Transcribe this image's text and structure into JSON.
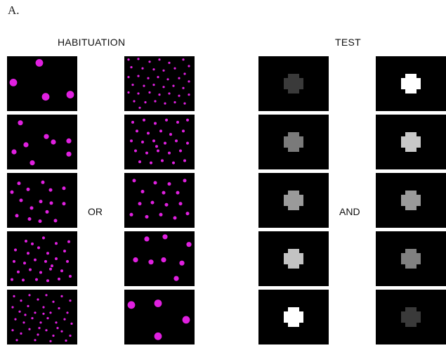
{
  "panel_label": "A.",
  "headings": {
    "habituation": "HABITUATION",
    "test": "TEST"
  },
  "connectors": {
    "or": "OR",
    "and": "AND"
  },
  "colors": {
    "dot": "#e020e0",
    "tile_bg": "#000000"
  },
  "habituation": {
    "left_column": [
      {
        "dots": [
          [
            0.46,
            0.12,
            0.06
          ],
          [
            0.09,
            0.48,
            0.06
          ],
          [
            0.55,
            0.74,
            0.06
          ],
          [
            0.9,
            0.7,
            0.06
          ]
        ]
      },
      {
        "dots": [
          [
            0.19,
            0.15,
            0.04
          ],
          [
            0.56,
            0.4,
            0.04
          ],
          [
            0.27,
            0.55,
            0.04
          ],
          [
            0.66,
            0.5,
            0.04
          ],
          [
            0.88,
            0.48,
            0.04
          ],
          [
            0.1,
            0.68,
            0.04
          ],
          [
            0.88,
            0.72,
            0.04
          ],
          [
            0.36,
            0.88,
            0.04
          ]
        ]
      },
      {
        "dots": [
          [
            0.17,
            0.19,
            0.028
          ],
          [
            0.3,
            0.3,
            0.028
          ],
          [
            0.51,
            0.17,
            0.028
          ],
          [
            0.62,
            0.31,
            0.028
          ],
          [
            0.81,
            0.28,
            0.028
          ],
          [
            0.2,
            0.5,
            0.028
          ],
          [
            0.48,
            0.52,
            0.028
          ],
          [
            0.63,
            0.55,
            0.028
          ],
          [
            0.81,
            0.56,
            0.028
          ],
          [
            0.35,
            0.64,
            0.028
          ],
          [
            0.57,
            0.71,
            0.028
          ],
          [
            0.14,
            0.78,
            0.028
          ],
          [
            0.32,
            0.84,
            0.028
          ],
          [
            0.47,
            0.88,
            0.028
          ],
          [
            0.69,
            0.87,
            0.028
          ],
          [
            0.07,
            0.35,
            0.028
          ]
        ]
      },
      {
        "dots": [
          [
            0.27,
            0.18,
            0.022
          ],
          [
            0.52,
            0.12,
            0.022
          ],
          [
            0.7,
            0.22,
            0.022
          ],
          [
            0.88,
            0.19,
            0.022
          ],
          [
            0.12,
            0.34,
            0.022
          ],
          [
            0.3,
            0.4,
            0.022
          ],
          [
            0.45,
            0.3,
            0.022
          ],
          [
            0.58,
            0.4,
            0.022
          ],
          [
            0.82,
            0.36,
            0.022
          ],
          [
            0.1,
            0.55,
            0.022
          ],
          [
            0.25,
            0.58,
            0.022
          ],
          [
            0.4,
            0.52,
            0.022
          ],
          [
            0.55,
            0.55,
            0.022
          ],
          [
            0.7,
            0.5,
            0.022
          ],
          [
            0.86,
            0.55,
            0.022
          ],
          [
            0.16,
            0.74,
            0.022
          ],
          [
            0.33,
            0.7,
            0.022
          ],
          [
            0.48,
            0.75,
            0.022
          ],
          [
            0.62,
            0.69,
            0.022
          ],
          [
            0.78,
            0.72,
            0.022
          ],
          [
            0.23,
            0.89,
            0.022
          ],
          [
            0.42,
            0.88,
            0.022
          ],
          [
            0.58,
            0.9,
            0.022
          ],
          [
            0.74,
            0.87,
            0.022
          ],
          [
            0.9,
            0.82,
            0.022
          ],
          [
            0.07,
            0.88,
            0.022
          ],
          [
            0.36,
            0.23,
            0.022
          ],
          [
            0.64,
            0.63,
            0.022
          ]
        ]
      },
      {
        "dots": [
          [
            0.1,
            0.12,
            0.018
          ],
          [
            0.2,
            0.2,
            0.018
          ],
          [
            0.32,
            0.1,
            0.018
          ],
          [
            0.44,
            0.18,
            0.018
          ],
          [
            0.56,
            0.1,
            0.018
          ],
          [
            0.66,
            0.22,
            0.018
          ],
          [
            0.78,
            0.12,
            0.018
          ],
          [
            0.9,
            0.2,
            0.018
          ],
          [
            0.08,
            0.32,
            0.018
          ],
          [
            0.18,
            0.4,
            0.018
          ],
          [
            0.3,
            0.3,
            0.018
          ],
          [
            0.4,
            0.42,
            0.018
          ],
          [
            0.52,
            0.32,
            0.018
          ],
          [
            0.62,
            0.42,
            0.018
          ],
          [
            0.74,
            0.34,
            0.018
          ],
          [
            0.86,
            0.42,
            0.018
          ],
          [
            0.12,
            0.54,
            0.018
          ],
          [
            0.24,
            0.6,
            0.018
          ],
          [
            0.36,
            0.52,
            0.018
          ],
          [
            0.48,
            0.6,
            0.018
          ],
          [
            0.58,
            0.52,
            0.018
          ],
          [
            0.7,
            0.6,
            0.018
          ],
          [
            0.82,
            0.54,
            0.018
          ],
          [
            0.92,
            0.62,
            0.018
          ],
          [
            0.08,
            0.74,
            0.018
          ],
          [
            0.2,
            0.8,
            0.018
          ],
          [
            0.32,
            0.72,
            0.018
          ],
          [
            0.44,
            0.82,
            0.018
          ],
          [
            0.56,
            0.74,
            0.018
          ],
          [
            0.66,
            0.84,
            0.018
          ],
          [
            0.78,
            0.76,
            0.018
          ],
          [
            0.9,
            0.84,
            0.018
          ],
          [
            0.14,
            0.92,
            0.018
          ],
          [
            0.4,
            0.92,
            0.018
          ],
          [
            0.62,
            0.94,
            0.018
          ],
          [
            0.84,
            0.93,
            0.018
          ],
          [
            0.26,
            0.46,
            0.018
          ],
          [
            0.46,
            0.7,
            0.018
          ],
          [
            0.72,
            0.7,
            0.018
          ],
          [
            0.52,
            0.44,
            0.018
          ]
        ]
      }
    ],
    "right_column": [
      {
        "dots": [
          [
            0.06,
            0.06,
            0.018
          ],
          [
            0.2,
            0.05,
            0.018
          ],
          [
            0.36,
            0.1,
            0.018
          ],
          [
            0.5,
            0.06,
            0.018
          ],
          [
            0.64,
            0.12,
            0.018
          ],
          [
            0.84,
            0.06,
            0.018
          ],
          [
            0.92,
            0.18,
            0.018
          ],
          [
            0.1,
            0.2,
            0.018
          ],
          [
            0.26,
            0.22,
            0.018
          ],
          [
            0.42,
            0.24,
            0.018
          ],
          [
            0.56,
            0.26,
            0.018
          ],
          [
            0.72,
            0.22,
            0.018
          ],
          [
            0.86,
            0.32,
            0.018
          ],
          [
            0.06,
            0.38,
            0.018
          ],
          [
            0.2,
            0.36,
            0.018
          ],
          [
            0.34,
            0.4,
            0.018
          ],
          [
            0.48,
            0.38,
            0.018
          ],
          [
            0.62,
            0.42,
            0.018
          ],
          [
            0.78,
            0.4,
            0.018
          ],
          [
            0.92,
            0.46,
            0.018
          ],
          [
            0.12,
            0.52,
            0.018
          ],
          [
            0.28,
            0.54,
            0.018
          ],
          [
            0.42,
            0.52,
            0.018
          ],
          [
            0.56,
            0.56,
            0.018
          ],
          [
            0.7,
            0.54,
            0.018
          ],
          [
            0.84,
            0.58,
            0.018
          ],
          [
            0.06,
            0.66,
            0.018
          ],
          [
            0.2,
            0.68,
            0.018
          ],
          [
            0.36,
            0.66,
            0.018
          ],
          [
            0.5,
            0.7,
            0.018
          ],
          [
            0.64,
            0.68,
            0.018
          ],
          [
            0.78,
            0.72,
            0.018
          ],
          [
            0.92,
            0.7,
            0.018
          ],
          [
            0.14,
            0.82,
            0.018
          ],
          [
            0.3,
            0.84,
            0.018
          ],
          [
            0.44,
            0.82,
            0.018
          ],
          [
            0.58,
            0.86,
            0.018
          ],
          [
            0.72,
            0.84,
            0.018
          ],
          [
            0.86,
            0.86,
            0.018
          ],
          [
            0.22,
            0.94,
            0.018
          ]
        ]
      },
      {
        "dots": [
          [
            0.12,
            0.14,
            0.022
          ],
          [
            0.28,
            0.1,
            0.022
          ],
          [
            0.44,
            0.16,
            0.022
          ],
          [
            0.6,
            0.1,
            0.022
          ],
          [
            0.76,
            0.14,
            0.022
          ],
          [
            0.9,
            0.1,
            0.022
          ],
          [
            0.18,
            0.3,
            0.022
          ],
          [
            0.34,
            0.34,
            0.022
          ],
          [
            0.52,
            0.3,
            0.022
          ],
          [
            0.66,
            0.36,
            0.022
          ],
          [
            0.84,
            0.3,
            0.022
          ],
          [
            0.1,
            0.48,
            0.022
          ],
          [
            0.26,
            0.5,
            0.022
          ],
          [
            0.42,
            0.48,
            0.022
          ],
          [
            0.58,
            0.52,
            0.022
          ],
          [
            0.74,
            0.48,
            0.022
          ],
          [
            0.9,
            0.52,
            0.022
          ],
          [
            0.16,
            0.66,
            0.022
          ],
          [
            0.32,
            0.7,
            0.022
          ],
          [
            0.48,
            0.66,
            0.022
          ],
          [
            0.64,
            0.7,
            0.022
          ],
          [
            0.8,
            0.66,
            0.022
          ],
          [
            0.22,
            0.86,
            0.022
          ],
          [
            0.38,
            0.88,
            0.022
          ],
          [
            0.54,
            0.84,
            0.022
          ],
          [
            0.7,
            0.88,
            0.022
          ],
          [
            0.86,
            0.84,
            0.022
          ],
          [
            0.46,
            0.58,
            0.022
          ]
        ]
      },
      {
        "dots": [
          [
            0.14,
            0.14,
            0.028
          ],
          [
            0.44,
            0.18,
            0.028
          ],
          [
            0.64,
            0.2,
            0.028
          ],
          [
            0.86,
            0.14,
            0.028
          ],
          [
            0.26,
            0.34,
            0.028
          ],
          [
            0.56,
            0.36,
            0.028
          ],
          [
            0.76,
            0.36,
            0.028
          ],
          [
            0.22,
            0.56,
            0.028
          ],
          [
            0.4,
            0.54,
            0.028
          ],
          [
            0.6,
            0.58,
            0.028
          ],
          [
            0.8,
            0.56,
            0.028
          ],
          [
            0.1,
            0.76,
            0.028
          ],
          [
            0.32,
            0.8,
            0.028
          ],
          [
            0.52,
            0.76,
            0.028
          ],
          [
            0.72,
            0.82,
            0.028
          ],
          [
            0.9,
            0.74,
            0.028
          ]
        ]
      },
      {
        "dots": [
          [
            0.32,
            0.14,
            0.04
          ],
          [
            0.58,
            0.1,
            0.04
          ],
          [
            0.92,
            0.24,
            0.04
          ],
          [
            0.16,
            0.52,
            0.04
          ],
          [
            0.38,
            0.56,
            0.04
          ],
          [
            0.56,
            0.52,
            0.04
          ],
          [
            0.82,
            0.58,
            0.04
          ],
          [
            0.74,
            0.86,
            0.04
          ]
        ]
      },
      {
        "dots": [
          [
            0.1,
            0.28,
            0.06
          ],
          [
            0.48,
            0.25,
            0.06
          ],
          [
            0.88,
            0.55,
            0.06
          ],
          [
            0.48,
            0.85,
            0.06
          ]
        ]
      }
    ]
  },
  "test": {
    "left_column": [
      {
        "cross_color": "#3a3a3a"
      },
      {
        "cross_color": "#7a7a7a"
      },
      {
        "cross_color": "#9a9a9a"
      },
      {
        "cross_color": "#c2c2c2"
      },
      {
        "cross_color": "#ffffff"
      }
    ],
    "right_column": [
      {
        "cross_color": "#ffffff"
      },
      {
        "cross_color": "#c8c8c8"
      },
      {
        "cross_color": "#9a9a9a"
      },
      {
        "cross_color": "#808080"
      },
      {
        "cross_color": "#3a3a3a"
      }
    ]
  }
}
